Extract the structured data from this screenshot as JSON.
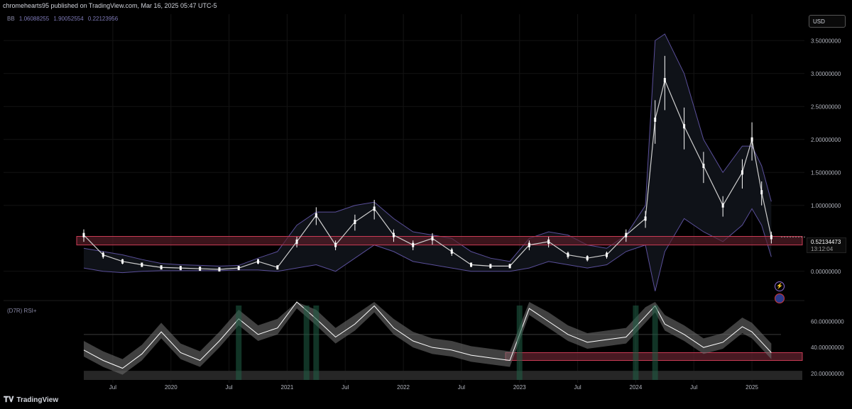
{
  "header": {
    "publisher": "chromehearts95 published on TradingView.com, Mar 16, 2025 05:47 UTC-5"
  },
  "legend": {
    "bb_name": "BB",
    "bb_values": [
      "1.06088255",
      "1.90052554",
      "0.22123956"
    ]
  },
  "currency": "USD",
  "rsi_label": "(D7R) RSI+",
  "last_price": {
    "value": "0.52134473",
    "countdown": "13:12:04"
  },
  "footer": {
    "brand": "TradingView"
  },
  "colors": {
    "background": "#000000",
    "candle": "#ffffff",
    "bb_line": "#5a4f9a",
    "zone": "#c93b55",
    "rsi_line": "#ffffff",
    "rsi_band": "#6b6b6b",
    "accent_green": "#3bd16f"
  },
  "chart_data": [
    {
      "type": "line",
      "title": "",
      "x_tick_labels": [
        "Jul",
        "2020",
        "Jul",
        "2021",
        "Jul",
        "2022",
        "Jul",
        "2023",
        "Jul",
        "2024",
        "Jul",
        "2025"
      ],
      "y_tick_labels": [
        "3.50000000",
        "3.00000000",
        "2.50000000",
        "2.00000000",
        "1.50000000",
        "1.00000000",
        "0.00000000"
      ],
      "ylim": [
        -0.4,
        3.75
      ],
      "series": [
        {
          "name": "",
          "x": [
            "2019-04",
            "2019-06",
            "2019-08",
            "2019-10",
            "2019-12",
            "2020-02",
            "2020-04",
            "2020-06",
            "2020-08",
            "2020-10",
            "2020-12",
            "2021-02",
            "2021-04",
            "2021-06",
            "2021-08",
            "2021-10",
            "2021-12",
            "2022-02",
            "2022-04",
            "2022-06",
            "2022-08",
            "2022-10",
            "2022-12",
            "2023-02",
            "2023-04",
            "2023-06",
            "2023-08",
            "2023-10",
            "2023-12",
            "2024-02",
            "2024-03",
            "2024-04",
            "2024-06",
            "2024-08",
            "2024-10",
            "2024-12",
            "2025-01",
            "2025-02",
            "2025-03"
          ],
          "values": [
            0.55,
            0.25,
            0.15,
            0.1,
            0.06,
            0.05,
            0.04,
            0.03,
            0.05,
            0.15,
            0.06,
            0.45,
            0.85,
            0.4,
            0.75,
            0.95,
            0.55,
            0.4,
            0.5,
            0.3,
            0.1,
            0.08,
            0.08,
            0.4,
            0.45,
            0.25,
            0.2,
            0.25,
            0.55,
            0.8,
            2.3,
            2.9,
            2.2,
            1.6,
            1.0,
            1.5,
            2.0,
            1.2,
            0.52
          ]
        }
      ],
      "bollinger": {
        "upper": [
          0.35,
          0.3,
          0.25,
          0.18,
          0.12,
          0.1,
          0.09,
          0.08,
          0.09,
          0.2,
          0.3,
          0.7,
          0.9,
          0.9,
          1.0,
          1.05,
          0.8,
          0.6,
          0.55,
          0.5,
          0.3,
          0.2,
          0.15,
          0.5,
          0.6,
          0.55,
          0.4,
          0.35,
          0.55,
          1.0,
          3.5,
          3.6,
          3.0,
          2.0,
          1.5,
          1.9,
          1.9,
          1.6,
          1.06
        ],
        "lower": [
          0.05,
          0.0,
          -0.02,
          0.0,
          0.01,
          0.01,
          0.01,
          0.01,
          0.02,
          0.02,
          0.0,
          0.05,
          0.1,
          0.0,
          0.2,
          0.4,
          0.3,
          0.15,
          0.1,
          0.05,
          0.0,
          0.0,
          0.0,
          0.05,
          0.15,
          0.1,
          0.05,
          0.1,
          0.3,
          0.4,
          -0.3,
          0.3,
          0.8,
          0.6,
          0.45,
          0.7,
          0.95,
          0.7,
          0.22
        ]
      },
      "annotations": {
        "zone": [
          0.4,
          0.53
        ]
      }
    },
    {
      "type": "line",
      "title": "",
      "y_tick_labels": [
        "60.00000000",
        "40.00000000",
        "20.00000000"
      ],
      "ylim": [
        15,
        75
      ],
      "series": [
        {
          "name": "",
          "x": [
            "2019-04",
            "2019-06",
            "2019-08",
            "2019-10",
            "2019-12",
            "2020-02",
            "2020-04",
            "2020-06",
            "2020-08",
            "2020-10",
            "2020-12",
            "2021-02",
            "2021-04",
            "2021-06",
            "2021-08",
            "2021-10",
            "2021-12",
            "2022-02",
            "2022-04",
            "2022-06",
            "2022-08",
            "2022-10",
            "2022-12",
            "2023-02",
            "2023-04",
            "2023-06",
            "2023-08",
            "2023-10",
            "2023-12",
            "2024-02",
            "2024-03",
            "2024-04",
            "2024-06",
            "2024-08",
            "2024-10",
            "2024-12",
            "2025-01",
            "2025-02",
            "2025-03"
          ],
          "values": [
            38,
            30,
            24,
            35,
            52,
            36,
            30,
            45,
            62,
            50,
            55,
            75,
            62,
            48,
            58,
            72,
            55,
            45,
            40,
            38,
            34,
            32,
            30,
            70,
            60,
            50,
            44,
            46,
            48,
            64,
            72,
            58,
            50,
            40,
            44,
            56,
            52,
            44,
            36
          ]
        }
      ],
      "annotations": {
        "zone": [
          30,
          36
        ],
        "levels": [
          50
        ]
      }
    }
  ]
}
